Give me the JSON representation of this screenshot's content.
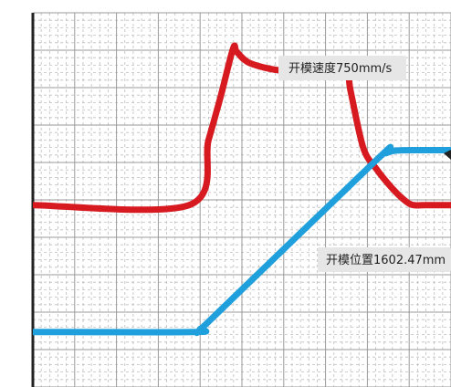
{
  "chart_data": {
    "type": "line",
    "grid": true,
    "x_range": [
      0,
      10
    ],
    "y_range": [
      0,
      10
    ],
    "series": [
      {
        "color": "#d71920",
        "x": [
          0.0,
          3.74,
          4.2,
          4.5,
          4.79,
          4.88,
          5.2,
          6.0,
          7.0,
          7.49,
          7.6,
          7.9,
          8.2,
          8.6,
          8.9,
          9.1,
          9.4,
          10.0
        ],
        "y": [
          4.86,
          4.86,
          6.6,
          7.8,
          9.05,
          8.95,
          8.65,
          8.45,
          8.5,
          8.5,
          7.9,
          6.4,
          5.85,
          5.3,
          4.98,
          4.86,
          4.86,
          4.86
        ]
      },
      {
        "color": "#1fa0dc",
        "x": [
          0.0,
          3.83,
          4.0,
          4.3,
          8.2,
          8.45,
          8.7,
          9.2,
          9.6,
          10.0
        ],
        "y": [
          1.47,
          1.47,
          1.55,
          1.85,
          6.05,
          6.25,
          6.32,
          6.33,
          6.33,
          6.33
        ]
      }
    ],
    "annotations": [
      {
        "text": "开模速度750mm/s"
      },
      {
        "text": "开模位置1602.47mm"
      }
    ]
  }
}
